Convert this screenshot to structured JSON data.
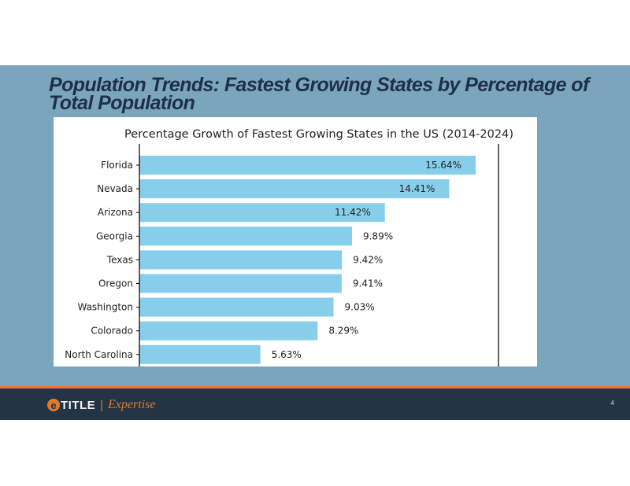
{
  "slide": {
    "title": "Population Trends: Fastest Growing States by Percentage of Total Population",
    "page_number": "4"
  },
  "footer": {
    "logo_mark": "e",
    "logo_title": "TITLE",
    "separator": "|",
    "logo_tagline": "Expertise"
  },
  "colors": {
    "slide_background": "#7aa5bd",
    "bar": "#87ceeb",
    "footer_background": "#243444",
    "accent": "#e07b2e",
    "title_text": "#1e3048"
  },
  "chart_data": {
    "type": "bar",
    "orientation": "horizontal",
    "title": "Percentage Growth of Fastest Growing States in the US (2014-2024)",
    "categories": [
      "Florida",
      "Nevada",
      "Arizona",
      "Georgia",
      "Texas",
      "Oregon",
      "Washington",
      "Colorado",
      "North Carolina"
    ],
    "values": [
      15.64,
      14.41,
      11.42,
      9.89,
      9.42,
      9.41,
      9.03,
      8.29,
      5.63
    ],
    "value_labels": [
      "15.64%",
      "14.41%",
      "11.42%",
      "9.89%",
      "9.42%",
      "9.41%",
      "9.03%",
      "8.29%",
      "5.63%"
    ],
    "xlim": [
      0,
      16.5
    ],
    "grid": false,
    "xlabel": "",
    "ylabel": ""
  }
}
